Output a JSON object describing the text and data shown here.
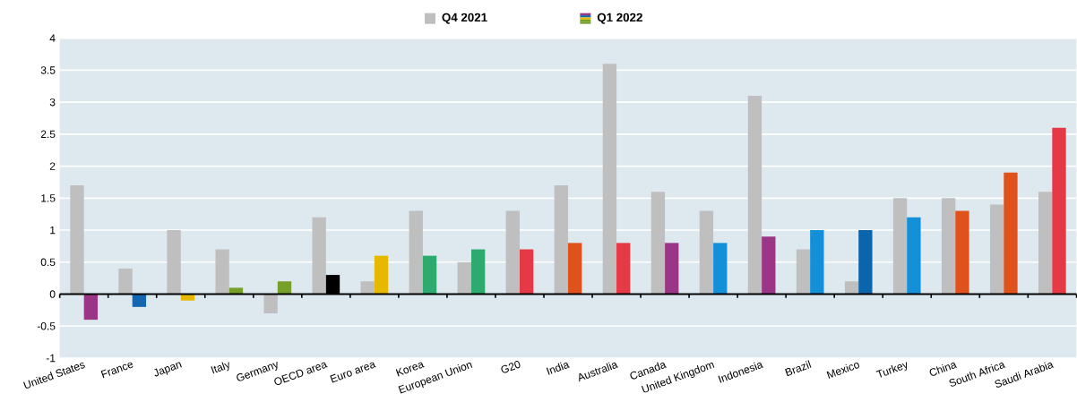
{
  "chart_data": {
    "type": "bar",
    "categories": [
      "United States",
      "France",
      "Japan",
      "Italy",
      "Germany",
      "OECD area",
      "Euro area",
      "Korea",
      "European Union",
      "G20",
      "India",
      "Australia",
      "Canada",
      "United Kingdom",
      "Indonesia",
      "Brazil",
      "Mexico",
      "Turkey",
      "China",
      "South Africa",
      "Saudi Arabia"
    ],
    "series": [
      {
        "name": "Q4 2021",
        "color": "#bfbfbf",
        "values": [
          1.7,
          0.4,
          1.0,
          0.7,
          -0.3,
          1.2,
          0.2,
          1.3,
          0.5,
          1.3,
          1.7,
          3.6,
          1.6,
          1.3,
          3.1,
          0.7,
          0.2,
          1.5,
          1.5,
          1.4,
          1.6
        ]
      },
      {
        "name": "Q1 2022",
        "colors": [
          "#9b3586",
          "#1466b0",
          "#e6b800",
          "#76a02a",
          "#76a02a",
          "#000000",
          "#e6b800",
          "#2eaa6e",
          "#2eaa6e",
          "#e63946",
          "#e0521c",
          "#e63946",
          "#9b3586",
          "#1390d8",
          "#9b3586",
          "#1390d8",
          "#0b65ad",
          "#1390d8",
          "#e0521c",
          "#e0521c",
          "#e63946"
        ],
        "values": [
          -0.4,
          -0.2,
          -0.1,
          0.1,
          0.2,
          0.3,
          0.6,
          0.6,
          0.7,
          0.7,
          0.8,
          0.8,
          0.8,
          0.8,
          0.9,
          1.0,
          1.0,
          1.2,
          1.3,
          1.9,
          2.6
        ]
      }
    ],
    "ylim": [
      -1,
      4
    ],
    "yticks": [
      -1,
      -0.5,
      0,
      0.5,
      1,
      1.5,
      2,
      2.5,
      3,
      3.5,
      4
    ],
    "grid": "y",
    "legend": "top"
  }
}
